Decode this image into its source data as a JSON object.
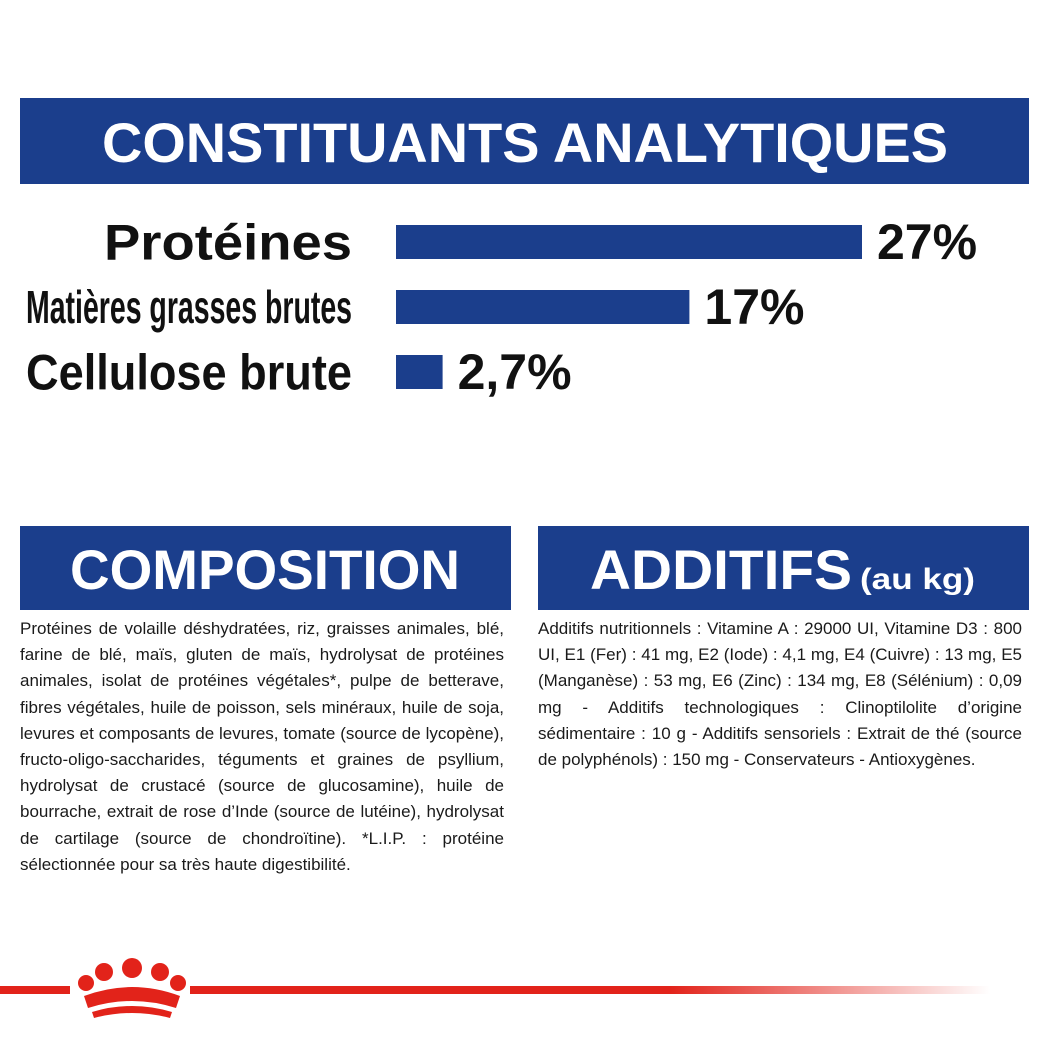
{
  "chart_data": {
    "type": "bar",
    "title": "CONSTITUANTS ANALYTIQUES",
    "categories": [
      "Protéines",
      "Matières grasses brutes",
      "Cellulose brute"
    ],
    "values": [
      27,
      17,
      2.7
    ],
    "value_labels": [
      "27%",
      "17%",
      "2,7%"
    ],
    "color": "#1b3e8c"
  },
  "composition": {
    "title": "COMPOSITION",
    "text": "Protéines de volaille déshydratées, riz, graisses animales, blé, farine de blé, maïs, gluten de maïs, hydrolysat de protéines animales, isolat de protéines végétales*, pulpe de betterave, fibres végétales, huile de poisson, sels minéraux, huile de soja, levures et composants de levures, tomate (source de lycopène), fructo-oligo-saccharides, téguments et graines de psyllium, hydrolysat de crustacé (source de glucosamine), huile de bourrache, extrait de rose d’Inde (source de lutéine), hydrolysat de cartilage (source de chondroïtine). *L.I.P. : protéine sélectionnée pour sa très haute digestibilité."
  },
  "additifs": {
    "title": "ADDITIFS",
    "subtitle": "(au kg)",
    "text": "Additifs nutritionnels : Vitamine A : 29000 UI, Vitamine D3 : 800 UI, E1 (Fer) : 41 mg, E2 (Iode) : 4,1 mg, E4 (Cuivre) : 13 mg, E5 (Manganèse) : 53 mg, E6 (Zinc) : 134 mg, E8 (Sélénium) : 0,09 mg - Additifs technologiques : Clinoptilolite d’origine sédimentaire : 10 g - Additifs sensoriels : Extrait de thé (source de polyphénols) : 150 mg - Conservateurs - Antioxygènes."
  }
}
